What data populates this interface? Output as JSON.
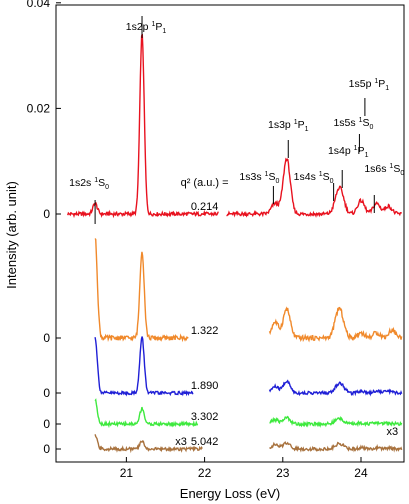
{
  "chart_data": {
    "type": "line",
    "xlabel": "Energy Loss (eV)",
    "ylabel": "Intensity (arb. unit)",
    "x_ticks": [
      "21",
      "22",
      "23",
      "24"
    ],
    "y_ticks": [
      "0",
      "0.02",
      "0.04"
    ],
    "xlim": [
      20.1,
      24.55
    ],
    "q2_header": "q² (a.u.) =",
    "scale_note": "x3",
    "series": [
      {
        "q2_label": "0.214",
        "color": "#e8121f",
        "baseline": 0,
        "scale": 1,
        "peaks": [
          [
            20.6,
            0.002
          ],
          [
            21.2,
            0.034
          ],
          [
            22.9,
            0.002
          ],
          [
            23.05,
            0.0105
          ],
          [
            23.7,
            0.0028
          ],
          [
            23.75,
            0.003
          ],
          [
            24.0,
            0.0025
          ],
          [
            24.2,
            0.002
          ],
          [
            24.35,
            0.0015
          ]
        ]
      },
      {
        "q2_label": "1.322",
        "color": "#f0892b",
        "baseline": 0,
        "scale": 1,
        "peaks": [
          [
            20.6,
            0.019
          ],
          [
            21.2,
            0.0165
          ],
          [
            22.9,
            0.003
          ],
          [
            23.05,
            0.0055
          ],
          [
            23.7,
            0.0035
          ],
          [
            23.75,
            0.003
          ],
          [
            24.0,
            0.001
          ],
          [
            24.2,
            0.001
          ],
          [
            24.4,
            0.0015
          ]
        ]
      },
      {
        "q2_label": "1.890",
        "color": "#1f1fd6",
        "baseline": 0,
        "scale": 1,
        "peaks": [
          [
            20.6,
            0.0105
          ],
          [
            21.2,
            0.0105
          ],
          [
            22.9,
            0.0012
          ],
          [
            23.05,
            0.0022
          ],
          [
            23.7,
            0.001
          ],
          [
            23.75,
            0.0012
          ],
          [
            24.0,
            0.0004
          ],
          [
            24.2,
            0.0004
          ],
          [
            24.35,
            0.0004
          ]
        ]
      },
      {
        "q2_label": "3.302",
        "color": "#3ee93e",
        "baseline": 0,
        "scale": 1,
        "peaks": [
          [
            20.6,
            0.0045
          ],
          [
            21.2,
            0.003
          ],
          [
            22.9,
            0.0008
          ],
          [
            23.05,
            0.0012
          ],
          [
            23.7,
            0.0006
          ],
          [
            23.75,
            0.0006
          ],
          [
            24.0,
            0.0002
          ],
          [
            24.2,
            0.0002
          ],
          [
            24.35,
            0.0002
          ]
        ]
      },
      {
        "q2_label": "5.042",
        "color": "#a8723e",
        "baseline": 0,
        "scale": 3,
        "peaks": [
          [
            20.6,
            0.0025
          ],
          [
            21.2,
            0.0015
          ],
          [
            22.9,
            0.0008
          ],
          [
            23.05,
            0.0012
          ],
          [
            23.7,
            0.0006
          ],
          [
            23.75,
            0.0006
          ],
          [
            24.0,
            0.0002
          ],
          [
            24.2,
            0.0002
          ],
          [
            24.35,
            0.0002
          ]
        ]
      }
    ],
    "annotations": [
      {
        "x": 20.6,
        "base": "1s2s ",
        "sup": "1",
        "mid": "S",
        "sub": "0"
      },
      {
        "x": 21.2,
        "base": "1s2p ",
        "sup": "1",
        "mid": "P",
        "sub": "1"
      },
      {
        "x": 22.88,
        "base": "1s3s ",
        "sup": "1",
        "mid": "S",
        "sub": "0"
      },
      {
        "x": 23.07,
        "base": "1s3p ",
        "sup": "1",
        "mid": "P",
        "sub": "1"
      },
      {
        "x": 23.65,
        "base": "1s4s ",
        "sup": "1",
        "mid": "S",
        "sub": "0"
      },
      {
        "x": 23.76,
        "base": "1s4p ",
        "sup": "1",
        "mid": "P",
        "sub": "1"
      },
      {
        "x": 23.98,
        "base": "1s5s ",
        "sup": "1",
        "mid": "S",
        "sub": "0"
      },
      {
        "x": 24.05,
        "base": "1s5p ",
        "sup": "1",
        "mid": "P",
        "sub": "1"
      },
      {
        "x": 24.17,
        "base": "1s6s ",
        "sup": "1",
        "mid": "S",
        "sub": "0"
      }
    ]
  }
}
